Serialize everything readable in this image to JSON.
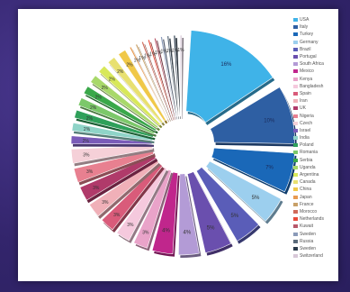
{
  "chart_data": {
    "type": "pie",
    "title": "",
    "legend_position": "right",
    "slices": [
      {
        "label": "USA",
        "value": 16,
        "text": "16%",
        "color": "#3fb3e8",
        "explode": 1
      },
      {
        "label": "Italy",
        "value": 10,
        "text": "10%",
        "color": "#2e5fa3",
        "explode": 1
      },
      {
        "label": "Turkey",
        "value": 7,
        "text": "7%",
        "color": "#1a68b8",
        "explode": 1
      },
      {
        "label": "Germany",
        "value": 5,
        "text": "5%",
        "color": "#9ccfee",
        "explode": 1
      },
      {
        "label": "Brazil",
        "value": 5,
        "text": "5%",
        "color": "#5a5db8",
        "explode": 0.7
      },
      {
        "label": "Portugal",
        "value": 5,
        "text": "5%",
        "color": "#6a4fae",
        "explode": 0.6
      },
      {
        "label": "South Africa",
        "value": 4,
        "text": "4%",
        "color": "#b39bd6",
        "explode": 0.5
      },
      {
        "label": "Mexico",
        "value": 4,
        "text": "4%",
        "color": "#c0268c",
        "explode": 0.4
      },
      {
        "label": "Kenya",
        "value": 3,
        "text": "3%",
        "color": "#e9a3c9",
        "explode": 0.3
      },
      {
        "label": "Bangladesh",
        "value": 3,
        "text": "3%",
        "color": "#f5c9dd",
        "explode": 0.3
      },
      {
        "label": "Spain",
        "value": 3,
        "text": "3%",
        "color": "#d95b7a",
        "explode": 0.3
      },
      {
        "label": "Iran",
        "value": 3,
        "text": "3%",
        "color": "#f0b0b8",
        "explode": 0.3
      },
      {
        "label": "UK",
        "value": 3,
        "text": "3%",
        "color": "#b03a6a",
        "explode": 0.3
      },
      {
        "label": "Nigeria",
        "value": 3,
        "text": "3%",
        "color": "#e88090",
        "explode": 0.3
      },
      {
        "label": "Czech",
        "value": 3,
        "text": "3%",
        "color": "#f5d0d8",
        "explode": 0.3
      },
      {
        "label": "Israel",
        "value": 2,
        "text": "2%",
        "color": "#7a5bb8",
        "explode": 0.3
      },
      {
        "label": "India",
        "value": 2,
        "text": "2%",
        "color": "#8fd4c8",
        "explode": 0.3
      },
      {
        "label": "Poland",
        "value": 2,
        "text": "2%",
        "color": "#2fa05a",
        "explode": 0.3
      },
      {
        "label": "Romania",
        "value": 2,
        "text": "2%",
        "color": "#7cc86a",
        "explode": 0.3
      },
      {
        "label": "Serbia",
        "value": 2,
        "text": "2%",
        "color": "#3aa84a",
        "explode": 0.3
      },
      {
        "label": "Uganda",
        "value": 2,
        "text": "2%",
        "color": "#a8d86a",
        "explode": 0.3
      },
      {
        "label": "Argentina",
        "value": 2,
        "text": "2%",
        "color": "#d8e85a",
        "explode": 0.3
      },
      {
        "label": "Canada",
        "value": 2,
        "text": "2%",
        "color": "#e8e070",
        "explode": 0.3
      },
      {
        "label": "China",
        "value": 2,
        "text": "2%",
        "color": "#f0c848",
        "explode": 0.3
      },
      {
        "label": "Japan",
        "value": 1,
        "text": "1%",
        "color": "#e89a50",
        "explode": 0.3
      },
      {
        "label": "France",
        "value": 1,
        "text": "1%",
        "color": "#c8a068",
        "explode": 0.3
      },
      {
        "label": "Morocco",
        "value": 1,
        "text": "1%",
        "color": "#d06a5a",
        "explode": 0.3
      },
      {
        "label": "Netherlands",
        "value": 1,
        "text": "1%",
        "color": "#e84a3a",
        "explode": 0.3
      },
      {
        "label": "Kuwait",
        "value": 1,
        "text": "1%",
        "color": "#b8586a",
        "explode": 0.3
      },
      {
        "label": "Sweden",
        "value": 1,
        "text": "1%",
        "color": "#8a9ab8",
        "explode": 0.3
      },
      {
        "label": "Russia",
        "value": 1,
        "text": "1%",
        "color": "#5a6a7a",
        "explode": 0.3
      },
      {
        "label": "Sweden",
        "value": 1,
        "text": "1%",
        "color": "#2a3a4a",
        "explode": 0.3
      },
      {
        "label": "Switzerland",
        "value": 1,
        "text": "1%",
        "color": "#d8c8d8",
        "explode": 0.3
      }
    ]
  }
}
